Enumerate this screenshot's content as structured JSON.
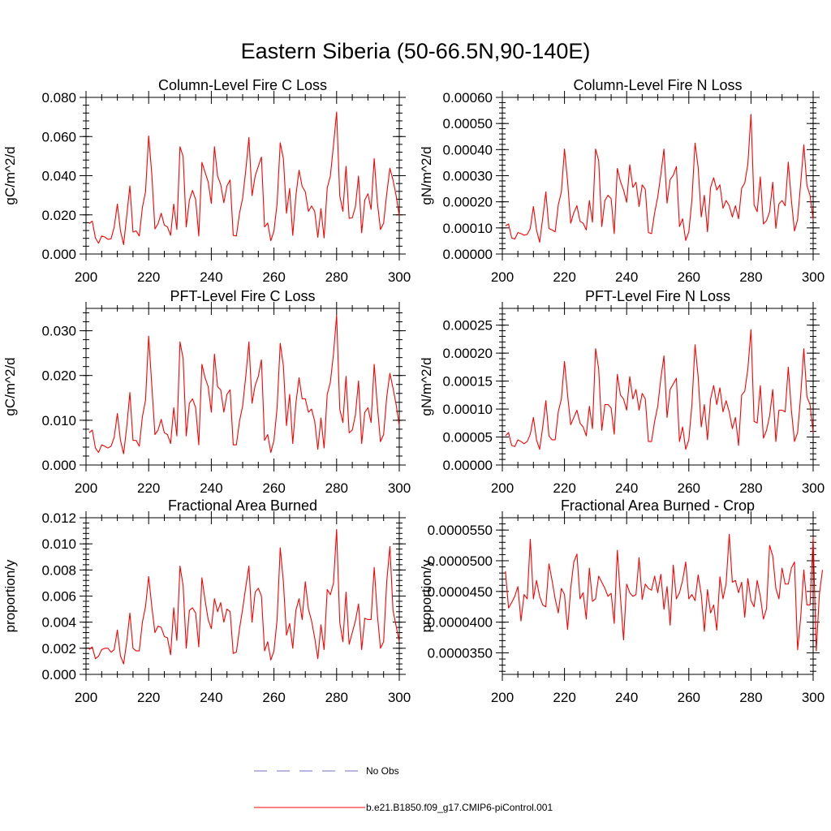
{
  "figure_title": "Eastern Siberia (50-66.5N,90-140E)",
  "colors": {
    "model": "#ff0000",
    "obs": "#6f6fc6",
    "axis": "#000000"
  },
  "legend": {
    "obs_label": "No Obs",
    "model_label": "b.e21.B1850.f09_g17.CMIP6-piControl.001"
  },
  "chart_data": [
    {
      "type": "line",
      "title": "Column-Level Fire C Loss",
      "ylabel": "gC/m^2/d",
      "xlim": [
        200,
        300
      ],
      "ylim": [
        0,
        0.08
      ],
      "yticks": [
        0,
        0.02,
        0.04,
        0.06,
        0.08
      ],
      "ytick_labels": [
        "0.000",
        "0.020",
        "0.040",
        "0.060",
        "0.080"
      ],
      "xticks": [
        200,
        220,
        240,
        260,
        280,
        300
      ],
      "xtick_labels": [
        "200",
        "220",
        "240",
        "260",
        "280",
        "300"
      ],
      "series": [
        {
          "name": "b.e21.B1850.f09_g17.CMIP6-piControl.001",
          "x_start": 201,
          "values": [
            0.0155,
            0.0168,
            0.0082,
            0.0055,
            0.0092,
            0.0087,
            0.0075,
            0.0078,
            0.0138,
            0.0255,
            0.0118,
            0.0048,
            0.0195,
            0.0348,
            0.0112,
            0.0118,
            0.0092,
            0.0238,
            0.0318,
            0.0603,
            0.0408,
            0.0128,
            0.0155,
            0.0208,
            0.0148,
            0.0138,
            0.0095,
            0.0255,
            0.0125,
            0.0548,
            0.0498,
            0.0138,
            0.0275,
            0.0325,
            0.0278,
            0.0092,
            0.0468,
            0.0418,
            0.0368,
            0.0258,
            0.0548,
            0.0398,
            0.0355,
            0.0262,
            0.0348,
            0.0378,
            0.0095,
            0.0092,
            0.0208,
            0.0285,
            0.0428,
            0.0595,
            0.0298,
            0.0398,
            0.0448,
            0.0495,
            0.0138,
            0.0158,
            0.0068,
            0.0118,
            0.0258,
            0.0568,
            0.0488,
            0.0208,
            0.0335,
            0.0095,
            0.0298,
            0.0428,
            0.0345,
            0.0318,
            0.0218,
            0.0245,
            0.0218,
            0.0085,
            0.0232,
            0.0082,
            0.0338,
            0.0398,
            0.0555,
            0.0725,
            0.0298,
            0.0218,
            0.0448,
            0.0182,
            0.0185,
            0.0242,
            0.0398,
            0.0108,
            0.0275,
            0.0308,
            0.0228,
            0.0488,
            0.0265,
            0.0125,
            0.0158,
            0.0308,
            0.0438,
            0.0378,
            0.0298,
            0.0195
          ]
        }
      ]
    },
    {
      "type": "line",
      "title": "Column-Level Fire N Loss",
      "ylabel": "gN/m^2/d",
      "xlim": [
        200,
        300
      ],
      "ylim": [
        0,
        0.0006
      ],
      "yticks": [
        0,
        0.0001,
        0.0002,
        0.0003,
        0.0004,
        0.0005,
        0.0006
      ],
      "ytick_labels": [
        "0.00000",
        "0.00010",
        "0.00020",
        "0.00030",
        "0.00040",
        "0.00050",
        "0.00060"
      ],
      "xticks": [
        200,
        220,
        240,
        260,
        280,
        300
      ],
      "xtick_labels": [
        "200",
        "220",
        "240",
        "260",
        "280",
        "300"
      ],
      "series": [
        {
          "name": "b.e21.B1850.f09_g17.CMIP6-piControl.001",
          "x_start": 201,
          "values": [
            0.000108,
            0.000115,
            6.2e-05,
            5.7e-05,
            8.2e-05,
            7.8e-05,
            7.2e-05,
            7.5e-05,
            9.8e-05,
            0.000182,
            9.2e-05,
            4.5e-05,
            0.000138,
            0.000238,
            9.8e-05,
            9.2e-05,
            8.5e-05,
            0.000188,
            0.000238,
            0.000402,
            0.000278,
            0.000118,
            0.000158,
            0.000185,
            0.000125,
            0.000118,
            9.2e-05,
            0.000205,
            0.000122,
            0.000402,
            0.000358,
            0.000105,
            0.000205,
            0.000225,
            0.000212,
            7.8e-05,
            0.000328,
            0.000278,
            0.000245,
            0.000198,
            0.000342,
            0.000255,
            0.000275,
            0.000182,
            0.000265,
            0.000248,
            8.2e-05,
            7.8e-05,
            0.000158,
            0.000218,
            0.000305,
            0.000402,
            0.000195,
            0.000285,
            0.000302,
            0.000335,
            0.000105,
            0.000135,
            5.2e-05,
            8.5e-05,
            0.000208,
            0.000425,
            0.000332,
            0.000142,
            0.000225,
            8.5e-05,
            0.000255,
            0.000292,
            0.000245,
            0.000265,
            0.000175,
            0.000205,
            0.000185,
            0.000142,
            0.000185,
            0.000135,
            0.000252,
            0.000272,
            0.000345,
            0.000535,
            0.000188,
            0.000162,
            0.000295,
            0.000115,
            0.000128,
            0.000162,
            0.000275,
            9.8e-05,
            0.000192,
            0.000205,
            0.000185,
            0.000352,
            0.000205,
            8.8e-05,
            0.000132,
            0.000272,
            0.000418,
            0.000262,
            0.000225,
            0.000132
          ]
        }
      ]
    },
    {
      "type": "line",
      "title": "PFT-Level Fire C Loss",
      "ylabel": "gC/m^2/d",
      "xlim": [
        200,
        300
      ],
      "ylim": [
        0,
        0.035
      ],
      "yticks": [
        0,
        0.01,
        0.02,
        0.03
      ],
      "ytick_labels": [
        "0.000",
        "0.010",
        "0.020",
        "0.030"
      ],
      "xticks": [
        200,
        220,
        240,
        260,
        280,
        300
      ],
      "xtick_labels": [
        "200",
        "220",
        "240",
        "260",
        "280",
        "300"
      ],
      "series": [
        {
          "name": "b.e21.B1850.f09_g17.CMIP6-piControl.001",
          "x_start": 201,
          "values": [
            0.0072,
            0.0078,
            0.0038,
            0.0028,
            0.0045,
            0.0042,
            0.0038,
            0.0042,
            0.0062,
            0.0115,
            0.0055,
            0.0025,
            0.0085,
            0.0162,
            0.0055,
            0.0055,
            0.0042,
            0.0108,
            0.0145,
            0.0288,
            0.0178,
            0.0068,
            0.0078,
            0.0102,
            0.0072,
            0.0068,
            0.0048,
            0.0128,
            0.0065,
            0.0275,
            0.0238,
            0.0065,
            0.0138,
            0.0148,
            0.0128,
            0.0045,
            0.0225,
            0.0195,
            0.0175,
            0.0118,
            0.0248,
            0.0175,
            0.0168,
            0.0118,
            0.0158,
            0.0168,
            0.0045,
            0.0045,
            0.0098,
            0.0132,
            0.0198,
            0.0275,
            0.0138,
            0.0178,
            0.0198,
            0.0235,
            0.0055,
            0.0068,
            0.0028,
            0.0055,
            0.0128,
            0.0272,
            0.0222,
            0.0088,
            0.0158,
            0.0048,
            0.0138,
            0.0195,
            0.0148,
            0.0148,
            0.0118,
            0.0125,
            0.0098,
            0.0035,
            0.0105,
            0.0038,
            0.0158,
            0.0185,
            0.0248,
            0.0335,
            0.0125,
            0.0095,
            0.0198,
            0.0072,
            0.0078,
            0.0112,
            0.0188,
            0.0048,
            0.0118,
            0.0128,
            0.0095,
            0.0225,
            0.0132,
            0.0052,
            0.0068,
            0.0152,
            0.0205,
            0.0172,
            0.0135,
            0.0088
          ]
        }
      ]
    },
    {
      "type": "line",
      "title": "PFT-Level Fire N Loss",
      "ylabel": "gN/m^2/d",
      "xlim": [
        200,
        300
      ],
      "ylim": [
        0,
        0.00028
      ],
      "yticks": [
        0,
        5e-05,
        0.0001,
        0.00015,
        0.0002,
        0.00025
      ],
      "ytick_labels": [
        "0.00000",
        "0.00005",
        "0.00010",
        "0.00015",
        "0.00020",
        "0.00025"
      ],
      "xticks": [
        200,
        220,
        240,
        260,
        280,
        300
      ],
      "xtick_labels": [
        "200",
        "220",
        "240",
        "260",
        "280",
        "300"
      ],
      "series": [
        {
          "name": "b.e21.B1850.f09_g17.CMIP6-piControl.001",
          "x_start": 201,
          "values": [
            5.2e-05,
            5.8e-05,
            3.5e-05,
            3.3e-05,
            4.5e-05,
            4.2e-05,
            3.8e-05,
            4.2e-05,
            5.5e-05,
            8.5e-05,
            4.5e-05,
            2.8e-05,
            6.8e-05,
            0.000115,
            5.2e-05,
            4.5e-05,
            4.5e-05,
            9.5e-05,
            0.000118,
            0.000185,
            0.000125,
            7.2e-05,
            8.5e-05,
            9.8e-05,
            7.5e-05,
            6.8e-05,
            5.2e-05,
            0.000105,
            6.5e-05,
            0.000208,
            0.000172,
            6.2e-05,
            0.000108,
            0.000108,
            0.000102,
            5.5e-05,
            0.000162,
            0.000125,
            0.000118,
            9.8e-05,
            0.000158,
            0.000118,
            0.000135,
            9.8e-05,
            0.000128,
            0.000118,
            4.2e-05,
            4.2e-05,
            7.8e-05,
            0.000105,
            0.000155,
            0.000195,
            8.5e-05,
            0.000135,
            0.000145,
            0.000155,
            4.2e-05,
            6.8e-05,
            2.8e-05,
            4.5e-05,
            0.000108,
            0.000215,
            0.000158,
            6.8e-05,
            0.000108,
            4.5e-05,
            0.000118,
            0.000142,
            0.000108,
            0.000138,
            9.5e-05,
            0.000115,
            9.5e-05,
            6.5e-05,
            8.5e-05,
            3.5e-05,
            0.000125,
            0.000132,
            0.000172,
            0.000242,
            7.8e-05,
            7.5e-05,
            0.000142,
            4.8e-05,
            6.2e-05,
            8.8e-05,
            0.000135,
            4.2e-05,
            9.8e-05,
            9.8e-05,
            9.5e-05,
            0.000175,
            9.8e-05,
            4.2e-05,
            5.8e-05,
            0.000125,
            0.000208,
            0.000122,
            0.000108,
            5.8e-05
          ]
        }
      ]
    },
    {
      "type": "line",
      "title": "Fractional Area Burned",
      "ylabel": "proportion/y",
      "xlim": [
        200,
        300
      ],
      "ylim": [
        0,
        0.012
      ],
      "yticks": [
        0,
        0.002,
        0.004,
        0.006,
        0.008,
        0.01,
        0.012
      ],
      "ytick_labels": [
        "0.000",
        "0.002",
        "0.004",
        "0.006",
        "0.008",
        "0.010",
        "0.012"
      ],
      "xticks": [
        200,
        220,
        240,
        260,
        280,
        300
      ],
      "xtick_labels": [
        "200",
        "220",
        "240",
        "260",
        "280",
        "300"
      ],
      "series": [
        {
          "name": "b.e21.B1850.f09_g17.CMIP6-piControl.001",
          "x_start": 201,
          "values": [
            0.0019,
            0.0021,
            0.0012,
            0.0014,
            0.0019,
            0.002,
            0.002,
            0.0017,
            0.0019,
            0.0034,
            0.0014,
            0.0008,
            0.0025,
            0.0047,
            0.002,
            0.0018,
            0.0018,
            0.004,
            0.0052,
            0.0075,
            0.0052,
            0.0032,
            0.0037,
            0.0036,
            0.0029,
            0.0028,
            0.0015,
            0.0051,
            0.0026,
            0.0083,
            0.0068,
            0.002,
            0.0049,
            0.0051,
            0.0047,
            0.0021,
            0.0074,
            0.0057,
            0.0042,
            0.0035,
            0.0058,
            0.0048,
            0.0055,
            0.004,
            0.005,
            0.0048,
            0.0016,
            0.0017,
            0.0035,
            0.005,
            0.0067,
            0.0083,
            0.004,
            0.0063,
            0.0066,
            0.006,
            0.0018,
            0.0025,
            0.0011,
            0.0018,
            0.0042,
            0.0097,
            0.0071,
            0.003,
            0.0039,
            0.002,
            0.0049,
            0.0058,
            0.0042,
            0.0071,
            0.005,
            0.0041,
            0.0028,
            0.0012,
            0.0038,
            0.0019,
            0.0065,
            0.0061,
            0.007,
            0.0111,
            0.004,
            0.0025,
            0.0063,
            0.0023,
            0.0032,
            0.0041,
            0.0054,
            0.0019,
            0.0043,
            0.0042,
            0.0042,
            0.0082,
            0.0046,
            0.002,
            0.0025,
            0.0071,
            0.0098,
            0.0049,
            0.0037,
            0.0025
          ]
        }
      ]
    },
    {
      "type": "line",
      "title": "Fractional Area Burned - Crop",
      "ylabel": "proportion/y",
      "xlim": [
        200,
        300
      ],
      "ylim": [
        3.15e-05,
        5.7e-05
      ],
      "yticks": [
        3.5e-05,
        4e-05,
        4.5e-05,
        5e-05,
        5.5e-05
      ],
      "ytick_labels": [
        "0.0000350",
        "0.0000400",
        "0.0000450",
        "0.0000500",
        "0.0000550"
      ],
      "xticks": [
        200,
        220,
        240,
        260,
        280,
        300
      ],
      "xtick_labels": [
        "200",
        "220",
        "240",
        "260",
        "280",
        "300"
      ],
      "series": [
        {
          "name": "b.e21.B1850.f09_g17.CMIP6-piControl.001",
          "x_start": 201,
          "values": [
            4.83e-05,
            4.23e-05,
            4.32e-05,
            4.42e-05,
            4.58e-05,
            4.02e-05,
            4.45e-05,
            4.38e-05,
            5.35e-05,
            4.38e-05,
            4.68e-05,
            4.42e-05,
            4.28e-05,
            4.25e-05,
            4.95e-05,
            4.68e-05,
            4.38e-05,
            4.15e-05,
            4.55e-05,
            4.45e-05,
            3.88e-05,
            4.55e-05,
            4.98e-05,
            5.11e-05,
            4.38e-05,
            4.48e-05,
            4.05e-05,
            4.88e-05,
            4.34e-05,
            4.38e-05,
            4.75e-05,
            4.65e-05,
            4.55e-05,
            4.42e-05,
            4.47e-05,
            3.98e-05,
            5.17e-05,
            4.41e-05,
            3.71e-05,
            4.62e-05,
            4.48e-05,
            4.42e-05,
            4.45e-05,
            5.05e-05,
            4.37e-05,
            4.62e-05,
            4.55e-05,
            4.52e-05,
            4.75e-05,
            4.48e-05,
            4.78e-05,
            4.21e-05,
            4.58e-05,
            3.95e-05,
            4.93e-05,
            4.38e-05,
            4.48e-05,
            4.68e-05,
            4.98e-05,
            4.38e-05,
            4.45e-05,
            4.35e-05,
            4.77e-05,
            4.45e-05,
            3.85e-05,
            4.53e-05,
            4.15e-05,
            4.28e-05,
            3.87e-05,
            4.74e-05,
            4.38e-05,
            4.63e-05,
            5.43e-05,
            4.65e-05,
            4.68e-05,
            4.48e-05,
            4.65e-05,
            4.08e-05,
            4.71e-05,
            4.35e-05,
            4.25e-05,
            4.68e-05,
            4.42e-05,
            4.05e-05,
            4.22e-05,
            5.25e-05,
            5.08e-05,
            4.55e-05,
            4.38e-05,
            4.88e-05,
            4.62e-05,
            4.62e-05,
            4.88e-05,
            4.98e-05,
            3.55e-05,
            4.08e-05,
            4.85e-05,
            4.28e-05,
            4.28e-05,
            5.38e-05,
            3.53e-05,
            4.45e-05,
            4.85e-05
          ]
        }
      ]
    }
  ]
}
